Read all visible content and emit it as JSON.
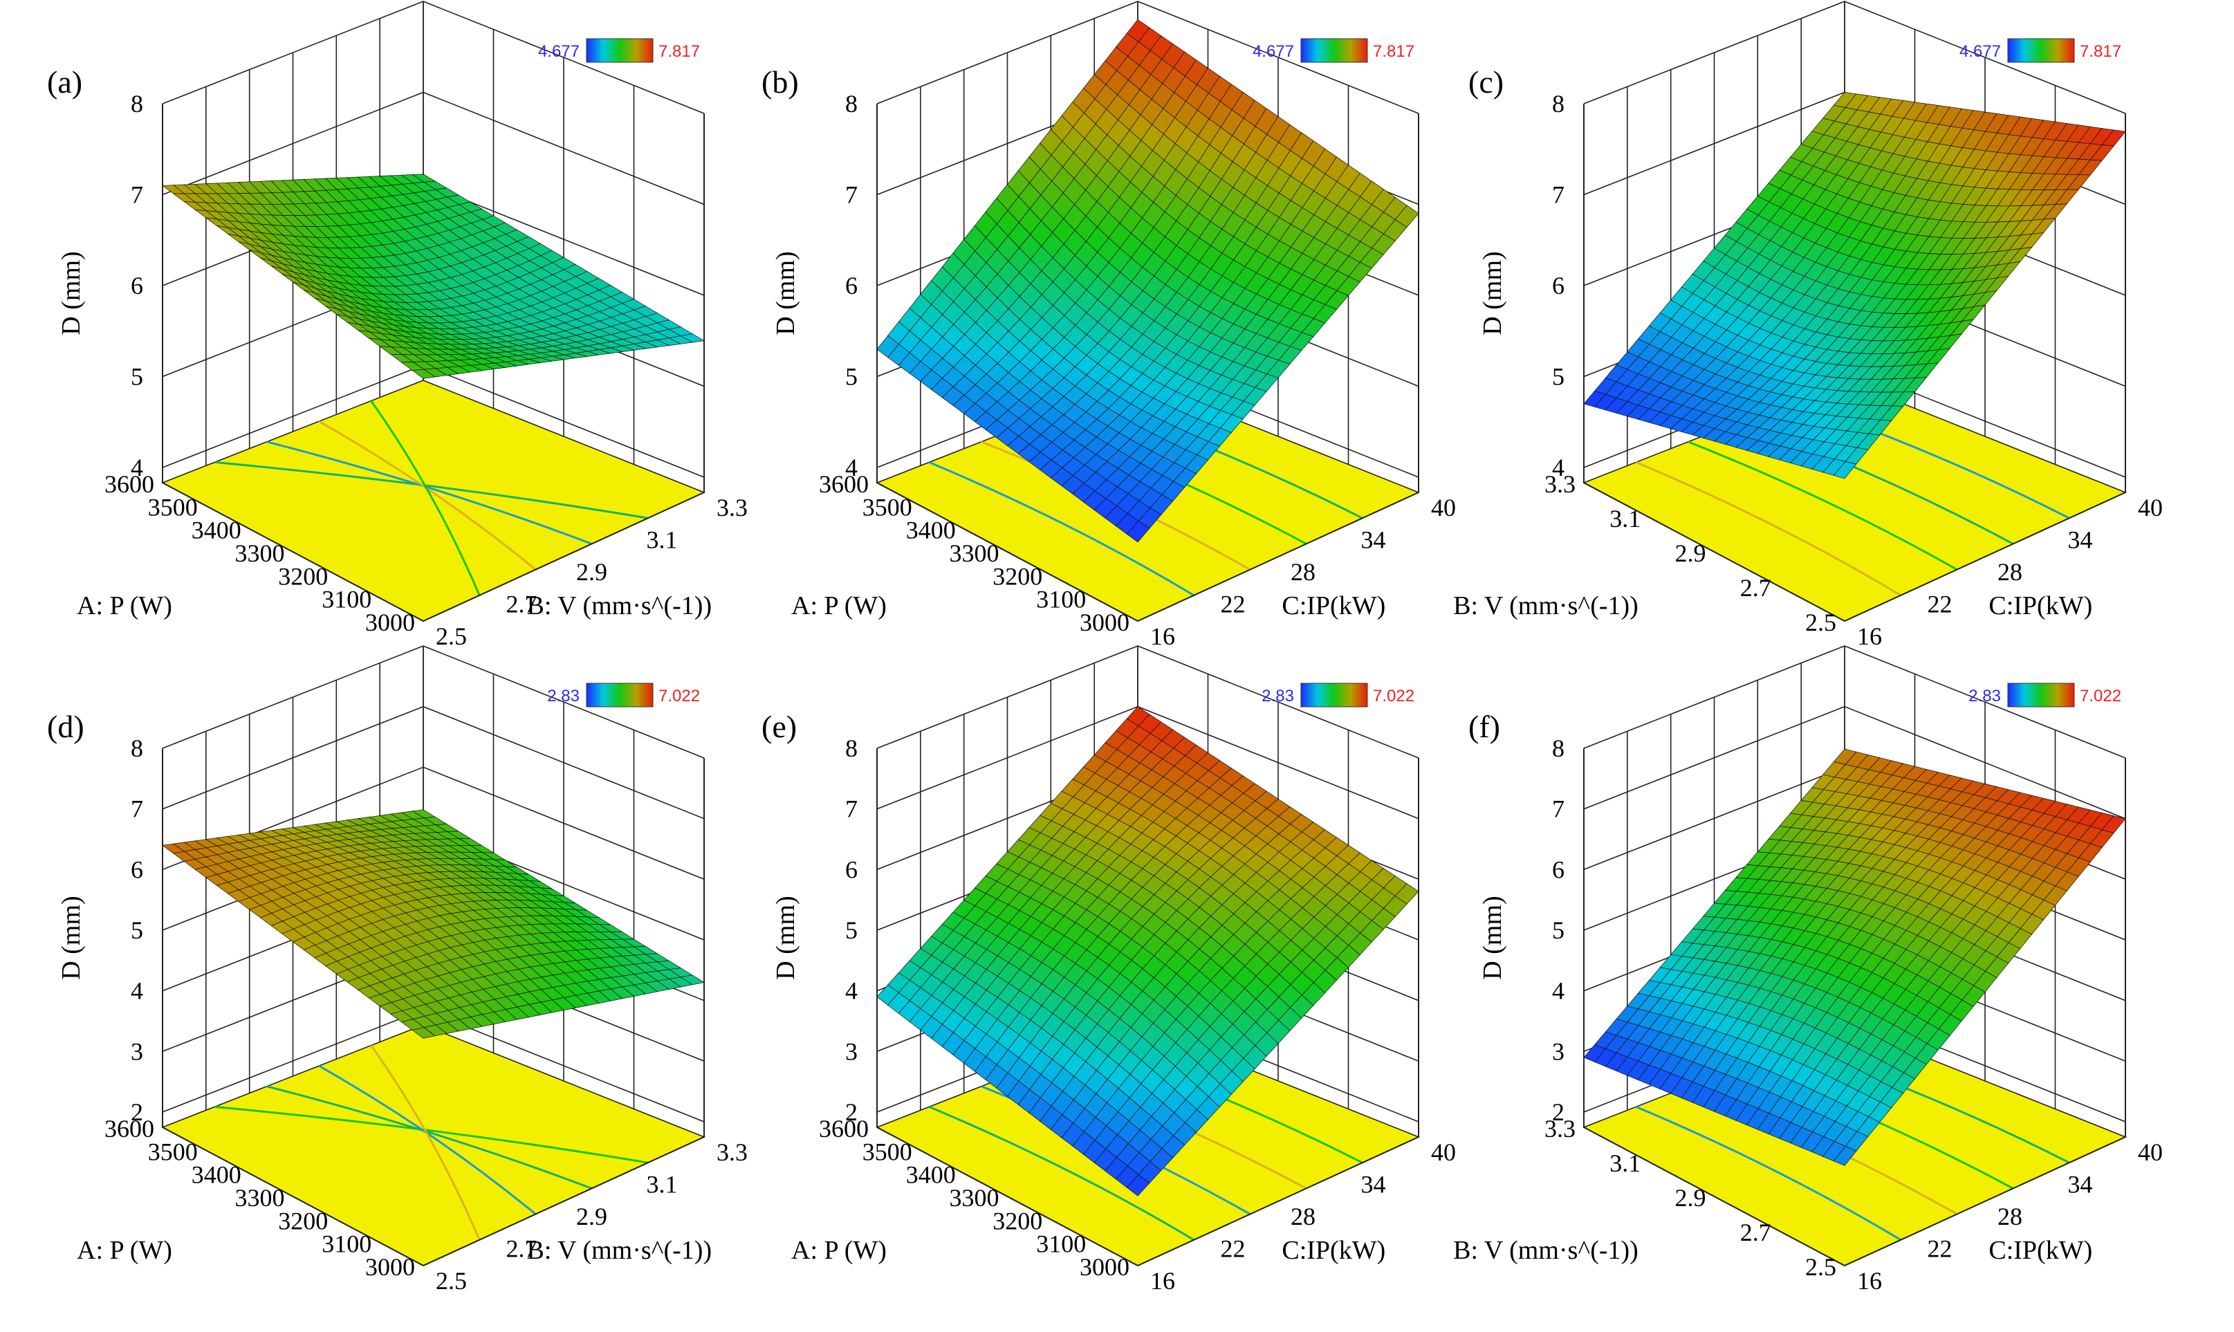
{
  "figure": {
    "panels": [
      {
        "id": "a",
        "label": "(a)",
        "legend": {
          "min": "4.677",
          "max": "7.817"
        },
        "z": {
          "label": "D (mm)",
          "ticks": [
            "8",
            "7",
            "6",
            "5",
            "4"
          ]
        },
        "left": {
          "label": "A: P (W)",
          "ticks": [
            "3600",
            "3500",
            "3400",
            "3300",
            "3200",
            "3100",
            "3000"
          ]
        },
        "right": {
          "label": "B: V (mm·s^(-1))",
          "ticks": [
            "2.5",
            "2.7",
            "2.9",
            "3.1",
            "3.3"
          ]
        }
      },
      {
        "id": "b",
        "label": "(b)",
        "legend": {
          "min": "4.677",
          "max": "7.817"
        },
        "z": {
          "label": "D (mm)",
          "ticks": [
            "8",
            "7",
            "6",
            "5",
            "4"
          ]
        },
        "left": {
          "label": "A: P (W)",
          "ticks": [
            "3600",
            "3500",
            "3400",
            "3300",
            "3200",
            "3100",
            "3000"
          ]
        },
        "right": {
          "label": "C:IP(kW)",
          "ticks": [
            "16",
            "22",
            "28",
            "34",
            "40"
          ]
        }
      },
      {
        "id": "c",
        "label": "(c)",
        "legend": {
          "min": "4.677",
          "max": "7.817"
        },
        "z": {
          "label": "D (mm)",
          "ticks": [
            "8",
            "7",
            "6",
            "5",
            "4"
          ]
        },
        "left": {
          "label": "B: V (mm·s^(-1))",
          "ticks": [
            "3.3",
            "3.1",
            "2.9",
            "2.7",
            "2.5"
          ]
        },
        "right": {
          "label": "C:IP(kW)",
          "ticks": [
            "16",
            "22",
            "28",
            "34",
            "40"
          ]
        }
      },
      {
        "id": "d",
        "label": "(d)",
        "legend": {
          "min": "2.83",
          "max": "7.022"
        },
        "z": {
          "label": "D (mm)",
          "ticks": [
            "8",
            "7",
            "6",
            "5",
            "4",
            "3",
            "2"
          ]
        },
        "left": {
          "label": "A: P (W)",
          "ticks": [
            "3600",
            "3500",
            "3400",
            "3300",
            "3200",
            "3100",
            "3000"
          ]
        },
        "right": {
          "label": "B: V (mm·s^(-1))",
          "ticks": [
            "2.5",
            "2.7",
            "2.9",
            "3.1",
            "3.3"
          ]
        }
      },
      {
        "id": "e",
        "label": "(e)",
        "legend": {
          "min": "2.83",
          "max": "7.022"
        },
        "z": {
          "label": "D (mm)",
          "ticks": [
            "8",
            "7",
            "6",
            "5",
            "4",
            "3",
            "2"
          ]
        },
        "left": {
          "label": "A: P (W)",
          "ticks": [
            "3600",
            "3500",
            "3400",
            "3300",
            "3200",
            "3100",
            "3000"
          ]
        },
        "right": {
          "label": "C:IP(kW)",
          "ticks": [
            "16",
            "22",
            "28",
            "34",
            "40"
          ]
        }
      },
      {
        "id": "f",
        "label": "(f)",
        "legend": {
          "min": "2.83",
          "max": "7.022"
        },
        "z": {
          "label": "D (mm)",
          "ticks": [
            "8",
            "7",
            "6",
            "5",
            "4",
            "3",
            "2"
          ]
        },
        "left": {
          "label": "B: V (mm·s^(-1))",
          "ticks": [
            "3.3",
            "3.1",
            "2.9",
            "2.7",
            "2.5"
          ]
        },
        "right": {
          "label": "C:IP(kW)",
          "ticks": [
            "16",
            "22",
            "28",
            "34",
            "40"
          ]
        }
      }
    ]
  },
  "chart_data": [
    {
      "type": "surface3d",
      "panel": "(a)",
      "zlabel": "D (mm)",
      "zlim": [
        4,
        8
      ],
      "xlabel": "A: P (W)",
      "xlim": [
        3000,
        3600
      ],
      "ylabel": "B: V (mm·s^(-1))",
      "ylim": [
        2.5,
        3.3
      ],
      "colorbar": {
        "min": 4.677,
        "max": 7.817
      },
      "corners": {
        "P3600_V2.5": 7.1,
        "P3000_V2.5": 6.5,
        "P3000_V3.3": 5.5,
        "P3600_V3.3": 6.1
      }
    },
    {
      "type": "surface3d",
      "panel": "(b)",
      "zlabel": "D (mm)",
      "zlim": [
        4,
        8
      ],
      "xlabel": "A: P (W)",
      "xlim": [
        3000,
        3600
      ],
      "ylabel": "C:IP(kW)",
      "ylim": [
        16,
        40
      ],
      "colorbar": {
        "min": 4.677,
        "max": 7.817
      },
      "corners": {
        "P3600_IP16": 5.3,
        "P3000_IP16": 4.7,
        "P3000_IP40": 6.9,
        "P3600_IP40": 7.8
      }
    },
    {
      "type": "surface3d",
      "panel": "(c)",
      "zlabel": "D (mm)",
      "zlim": [
        4,
        8
      ],
      "xlabel": "B: V (mm·s^(-1))",
      "xlim": [
        2.5,
        3.3
      ],
      "ylabel": "C:IP(kW)",
      "ylim": [
        16,
        40
      ],
      "colorbar": {
        "min": 4.677,
        "max": 7.817
      },
      "corners": {
        "V3.3_IP16": 4.7,
        "V2.5_IP16": 5.4,
        "V2.5_IP40": 7.8,
        "V3.3_IP40": 7.0
      }
    },
    {
      "type": "surface3d",
      "panel": "(d)",
      "zlabel": "D (mm)",
      "zlim": [
        2,
        8
      ],
      "xlabel": "A: P (W)",
      "xlim": [
        3000,
        3600
      ],
      "ylabel": "B: V (mm·s^(-1))",
      "ylim": [
        2.5,
        3.3
      ],
      "colorbar": {
        "min": 2.83,
        "max": 7.022
      },
      "corners": {
        "P3600_V2.5": 6.4,
        "P3000_V2.5": 5.5,
        "P3000_V3.3": 4.3,
        "P3600_V3.3": 5.3
      }
    },
    {
      "type": "surface3d",
      "panel": "(e)",
      "zlabel": "D (mm)",
      "zlim": [
        2,
        8
      ],
      "xlabel": "A: P (W)",
      "xlim": [
        3000,
        3600
      ],
      "ylabel": "C:IP(kW)",
      "ylim": [
        16,
        40
      ],
      "colorbar": {
        "min": 2.83,
        "max": 7.022
      },
      "corners": {
        "P3600_IP16": 3.9,
        "P3000_IP16": 2.9,
        "P3000_IP40": 5.8,
        "P3600_IP40": 7.0
      }
    },
    {
      "type": "surface3d",
      "panel": "(f)",
      "zlabel": "D (mm)",
      "zlim": [
        2,
        8
      ],
      "xlabel": "B: V (mm·s^(-1))",
      "xlim": [
        2.5,
        3.3
      ],
      "ylabel": "C:IP(kW)",
      "ylim": [
        16,
        40
      ],
      "colorbar": {
        "min": 2.83,
        "max": 7.022
      },
      "corners": {
        "V3.3_IP16": 2.9,
        "V2.5_IP16": 3.4,
        "V2.5_IP40": 7.0,
        "V3.3_IP40": 6.3
      }
    }
  ]
}
